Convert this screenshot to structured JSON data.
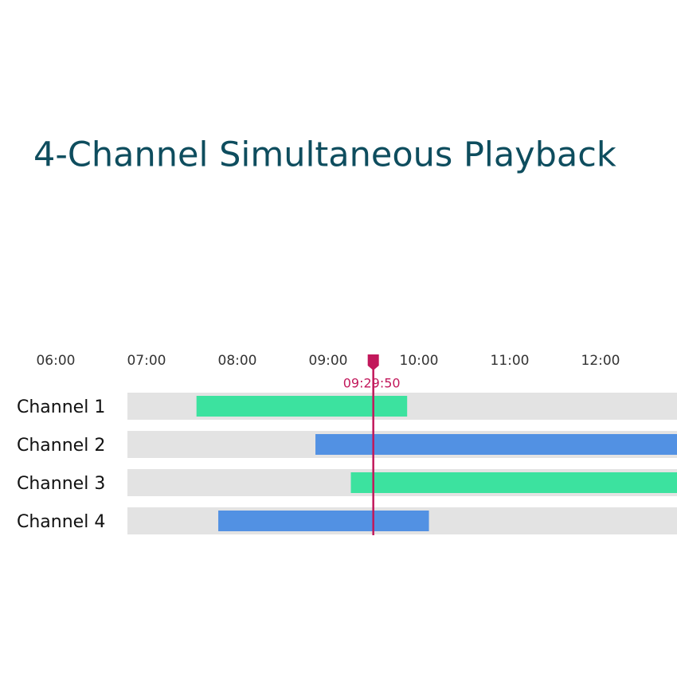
{
  "chart_data": {
    "type": "timeline",
    "title": "4-Channel Simultaneous Playback",
    "xlim": [
      5.386,
      12.842
    ],
    "xticks": [
      {
        "value": 6,
        "label": "06:00"
      },
      {
        "value": 7,
        "label": "07:00"
      },
      {
        "value": 8,
        "label": "08:00"
      },
      {
        "value": 9,
        "label": "09:00"
      },
      {
        "value": 10,
        "label": "10:00"
      },
      {
        "value": 11,
        "label": "11:00"
      },
      {
        "value": 12,
        "label": "12:00"
      }
    ],
    "playhead": {
      "value": 9.4972,
      "label": "09:29:50",
      "color": "#c2185b"
    },
    "tracks": [
      {
        "name": "Channel 1",
        "start": 7.55,
        "end": 9.87,
        "color": "#3ce29f"
      },
      {
        "name": "Channel 2",
        "start": 8.86,
        "end": 12.842,
        "color": "#5291e3"
      },
      {
        "name": "Channel 3",
        "start": 9.25,
        "end": 12.842,
        "color": "#3ce29f"
      },
      {
        "name": "Channel 4",
        "start": 7.79,
        "end": 10.11,
        "color": "#5291e3"
      }
    ]
  }
}
